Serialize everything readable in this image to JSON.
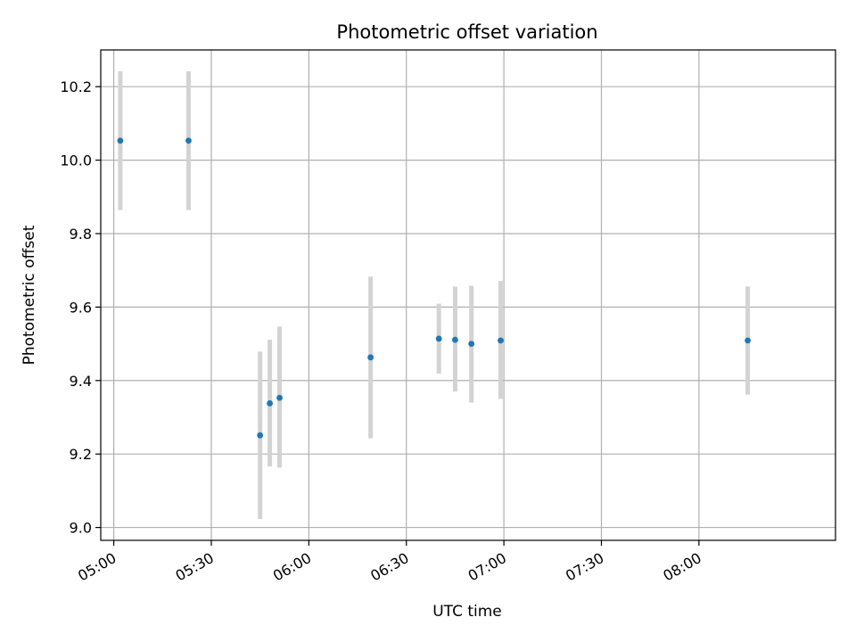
{
  "chart_data": {
    "type": "scatter",
    "title": "Photometric offset variation",
    "xlabel": "UTC time",
    "ylabel": "Photometric offset",
    "x_unit": "UTC time (HH:MM)",
    "xlim": [
      "04:56",
      "08:42"
    ],
    "ylim": [
      8.965,
      10.3
    ],
    "x_ticks": [
      "05:00",
      "05:30",
      "06:00",
      "06:30",
      "07:00",
      "07:30",
      "08:00"
    ],
    "y_ticks": [
      9.0,
      9.2,
      9.4,
      9.6,
      9.8,
      10.0,
      10.2
    ],
    "y_tick_labels": [
      "9.0",
      "9.2",
      "9.4",
      "9.6",
      "9.8",
      "10.0",
      "10.2"
    ],
    "grid": true,
    "marker_color": "#1f77b4",
    "errorbar_color": "#d3d3d3",
    "points": [
      {
        "x": "05:02",
        "y": 10.053,
        "ylow": 9.864,
        "yhigh": 10.242
      },
      {
        "x": "05:23",
        "y": 10.053,
        "ylow": 9.864,
        "yhigh": 10.242
      },
      {
        "x": "05:45",
        "y": 9.251,
        "ylow": 9.023,
        "yhigh": 9.479
      },
      {
        "x": "05:48",
        "y": 9.338,
        "ylow": 9.166,
        "yhigh": 9.511
      },
      {
        "x": "05:51",
        "y": 9.353,
        "ylow": 9.163,
        "yhigh": 9.547
      },
      {
        "x": "06:19",
        "y": 9.463,
        "ylow": 9.243,
        "yhigh": 9.683
      },
      {
        "x": "06:40",
        "y": 9.514,
        "ylow": 9.419,
        "yhigh": 9.609
      },
      {
        "x": "06:45",
        "y": 9.511,
        "ylow": 9.37,
        "yhigh": 9.656
      },
      {
        "x": "06:50",
        "y": 9.5,
        "ylow": 9.34,
        "yhigh": 9.658
      },
      {
        "x": "06:59",
        "y": 9.509,
        "ylow": 9.35,
        "yhigh": 9.671
      },
      {
        "x": "08:15",
        "y": 9.509,
        "ylow": 9.362,
        "yhigh": 9.656
      }
    ]
  }
}
